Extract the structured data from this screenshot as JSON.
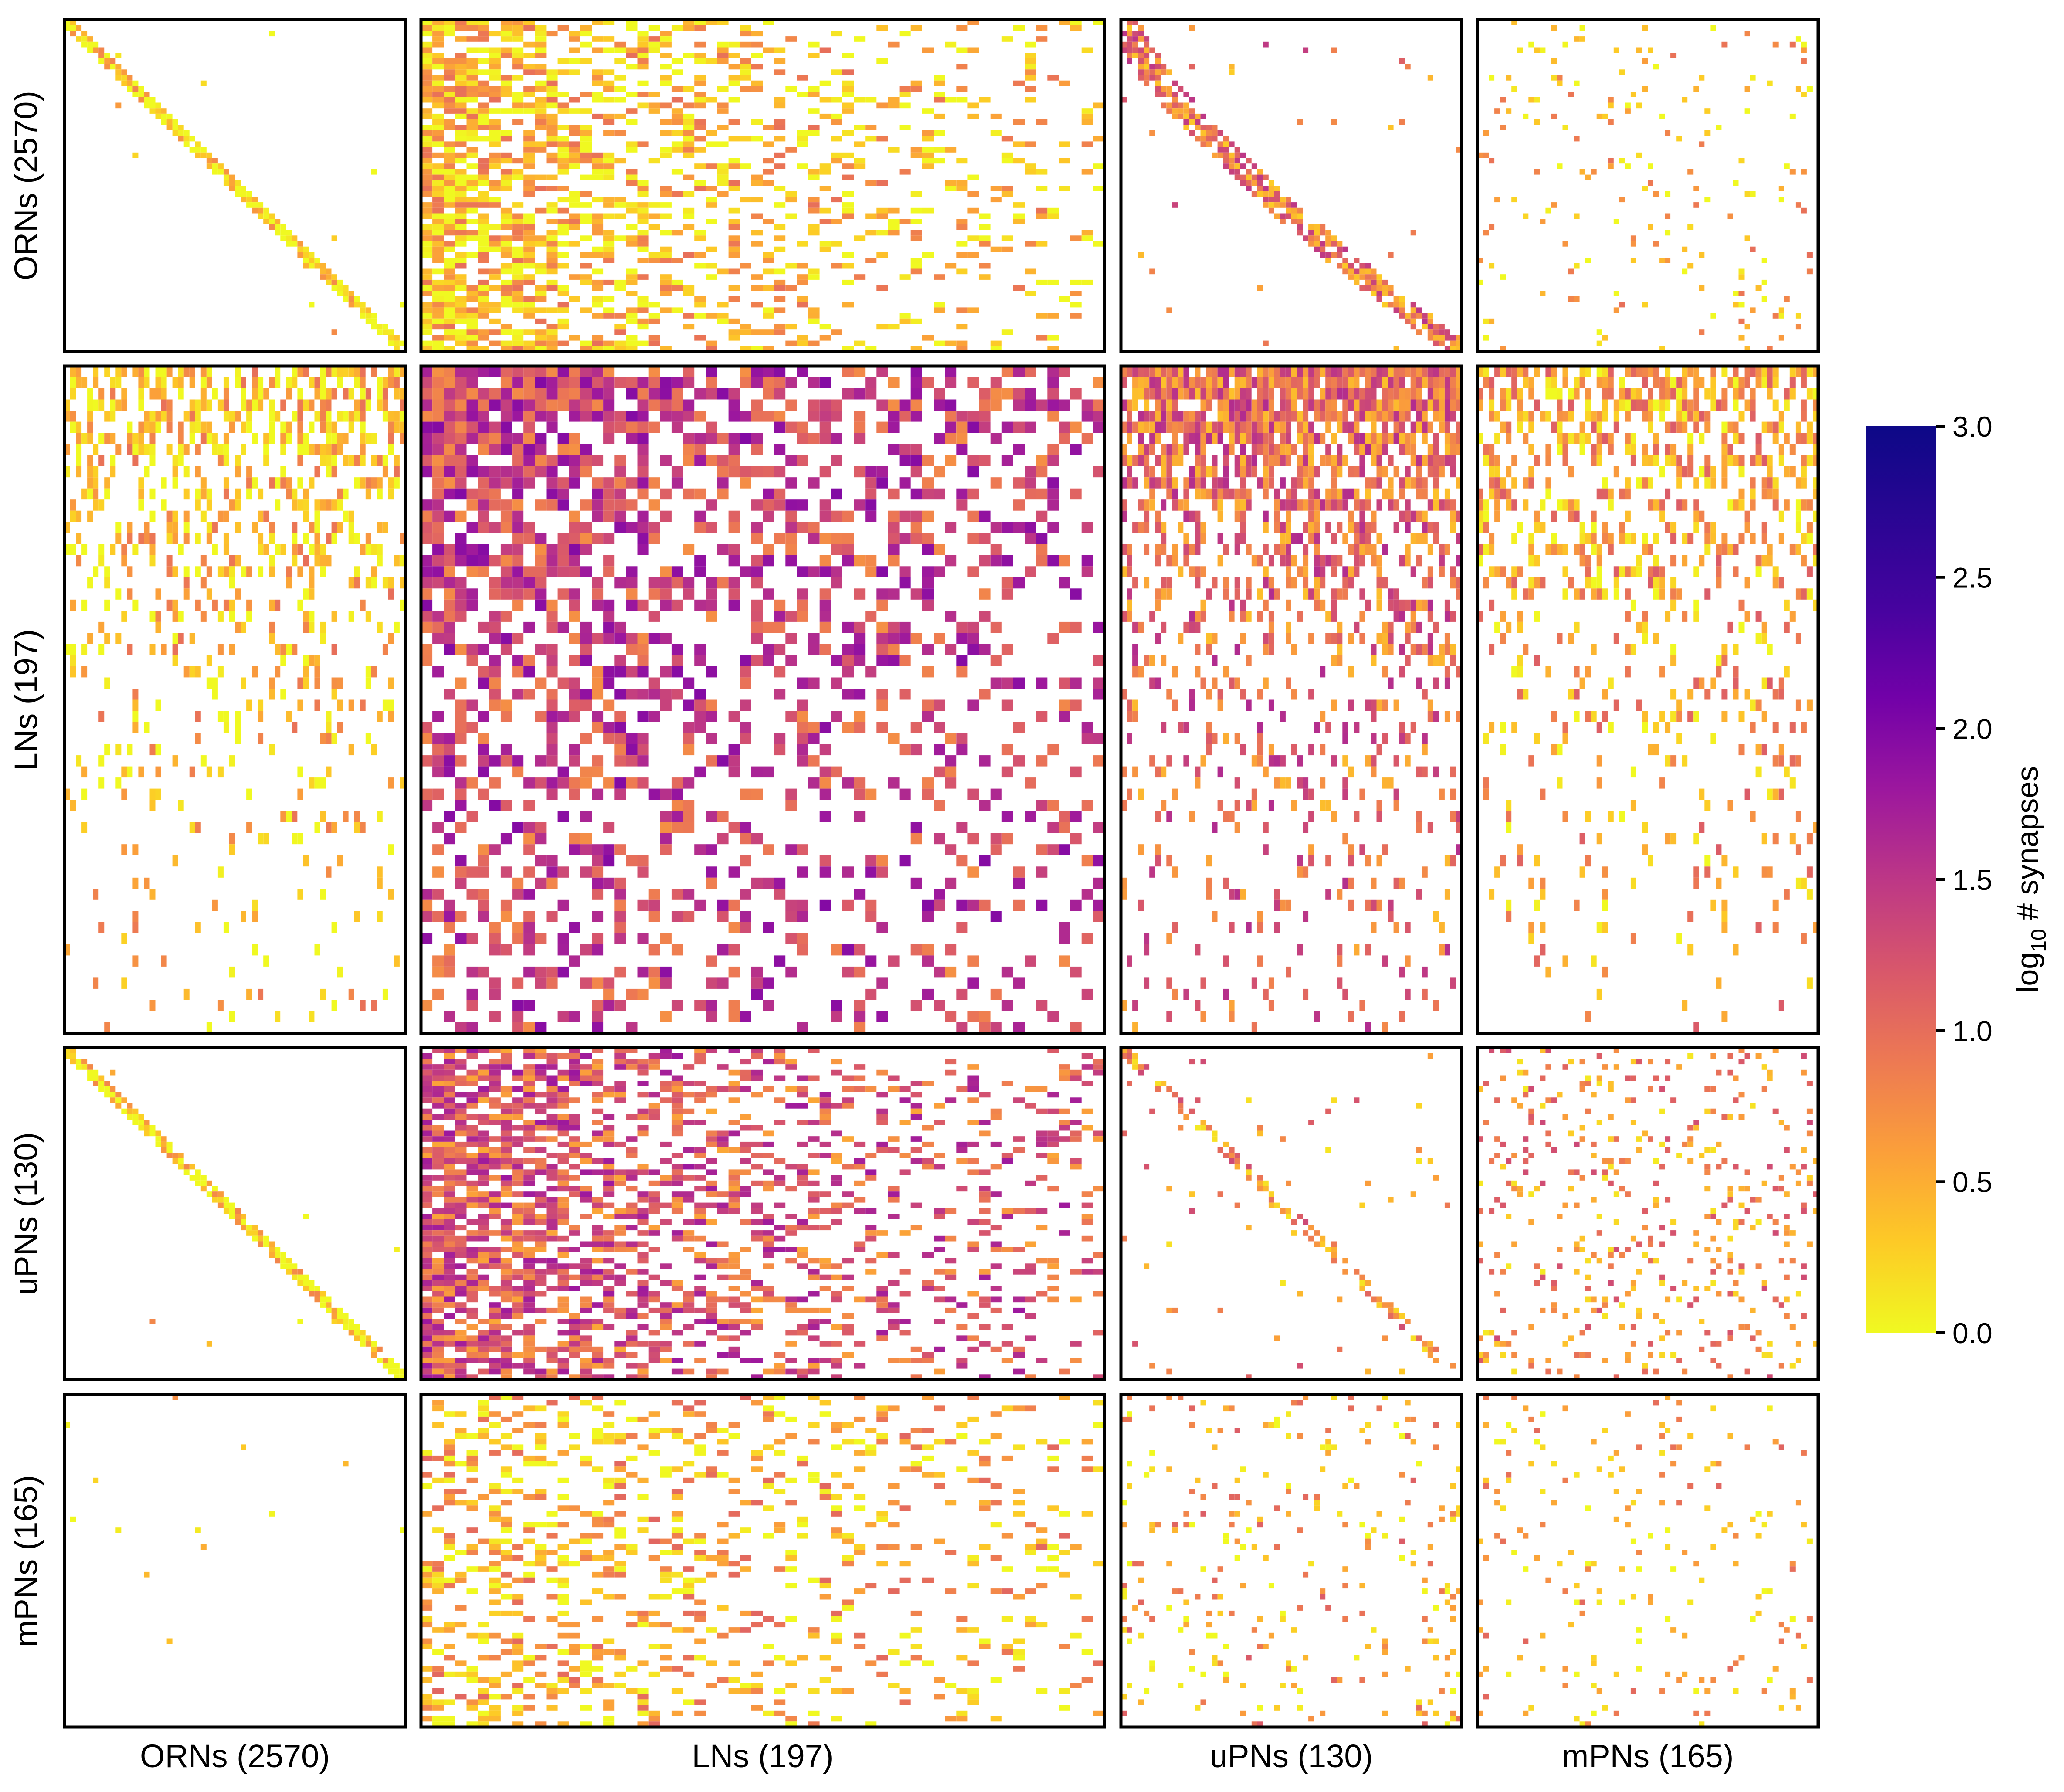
{
  "chart_data": {
    "type": "heatmap",
    "title": "",
    "description_of_blocks": "4x4 block connectivity matrix",
    "row_groups": [
      {
        "label": "ORNs (2570)",
        "count": 2570
      },
      {
        "label": "LNs (197)",
        "count": 197
      },
      {
        "label": "uPNs (130)",
        "count": 130
      },
      {
        "label": "mPNs (165)",
        "count": 165
      }
    ],
    "col_groups": [
      {
        "label": "ORNs (2570)",
        "count": 2570
      },
      {
        "label": "LNs (197)",
        "count": 197
      },
      {
        "label": "uPNs (130)",
        "count": 130
      },
      {
        "label": "mPNs (165)",
        "count": 165
      }
    ],
    "blocks": [
      [
        {
          "pattern": "block_diagonal",
          "density": 0.0,
          "mean": 0.2
        },
        {
          "pattern": "left_dense",
          "density": 0.45,
          "mean": 0.4
        },
        {
          "pattern": "staircase_diagonal",
          "density": 0.02,
          "mean": 1.0
        },
        {
          "pattern": "sparse",
          "density": 0.05,
          "mean": 0.4
        }
      ],
      [
        {
          "pattern": "top_rows",
          "density": 0.25,
          "mean": 0.4
        },
        {
          "pattern": "dense_topleft",
          "density": 0.55,
          "mean": 1.5
        },
        {
          "pattern": "dense_top",
          "density": 0.55,
          "mean": 1.1
        },
        {
          "pattern": "top_rows",
          "density": 0.3,
          "mean": 0.6
        }
      ],
      [
        {
          "pattern": "descending_diagonal",
          "density": 0.0,
          "mean": 0.2
        },
        {
          "pattern": "banded_left",
          "density": 0.6,
          "mean": 1.3
        },
        {
          "pattern": "sparse_diagonal",
          "density": 0.02,
          "mean": 0.8
        },
        {
          "pattern": "sparse",
          "density": 0.12,
          "mean": 0.8
        }
      ],
      [
        {
          "pattern": "very_sparse",
          "density": 0.005,
          "mean": 0.2
        },
        {
          "pattern": "sparse_rows",
          "density": 0.15,
          "mean": 0.5
        },
        {
          "pattern": "sparse",
          "density": 0.08,
          "mean": 0.6
        },
        {
          "pattern": "sparse",
          "density": 0.06,
          "mean": 0.5
        }
      ]
    ],
    "colorbar": {
      "colormap": "plasma_r",
      "label": "log10 # synapses",
      "label_base": "log",
      "label_sub": "10",
      "label_rest": " # synapses",
      "range": [
        0.0,
        3.0
      ],
      "ticks": [
        "0.0",
        "0.5",
        "1.0",
        "1.5",
        "2.0",
        "2.5",
        "3.0"
      ]
    }
  }
}
